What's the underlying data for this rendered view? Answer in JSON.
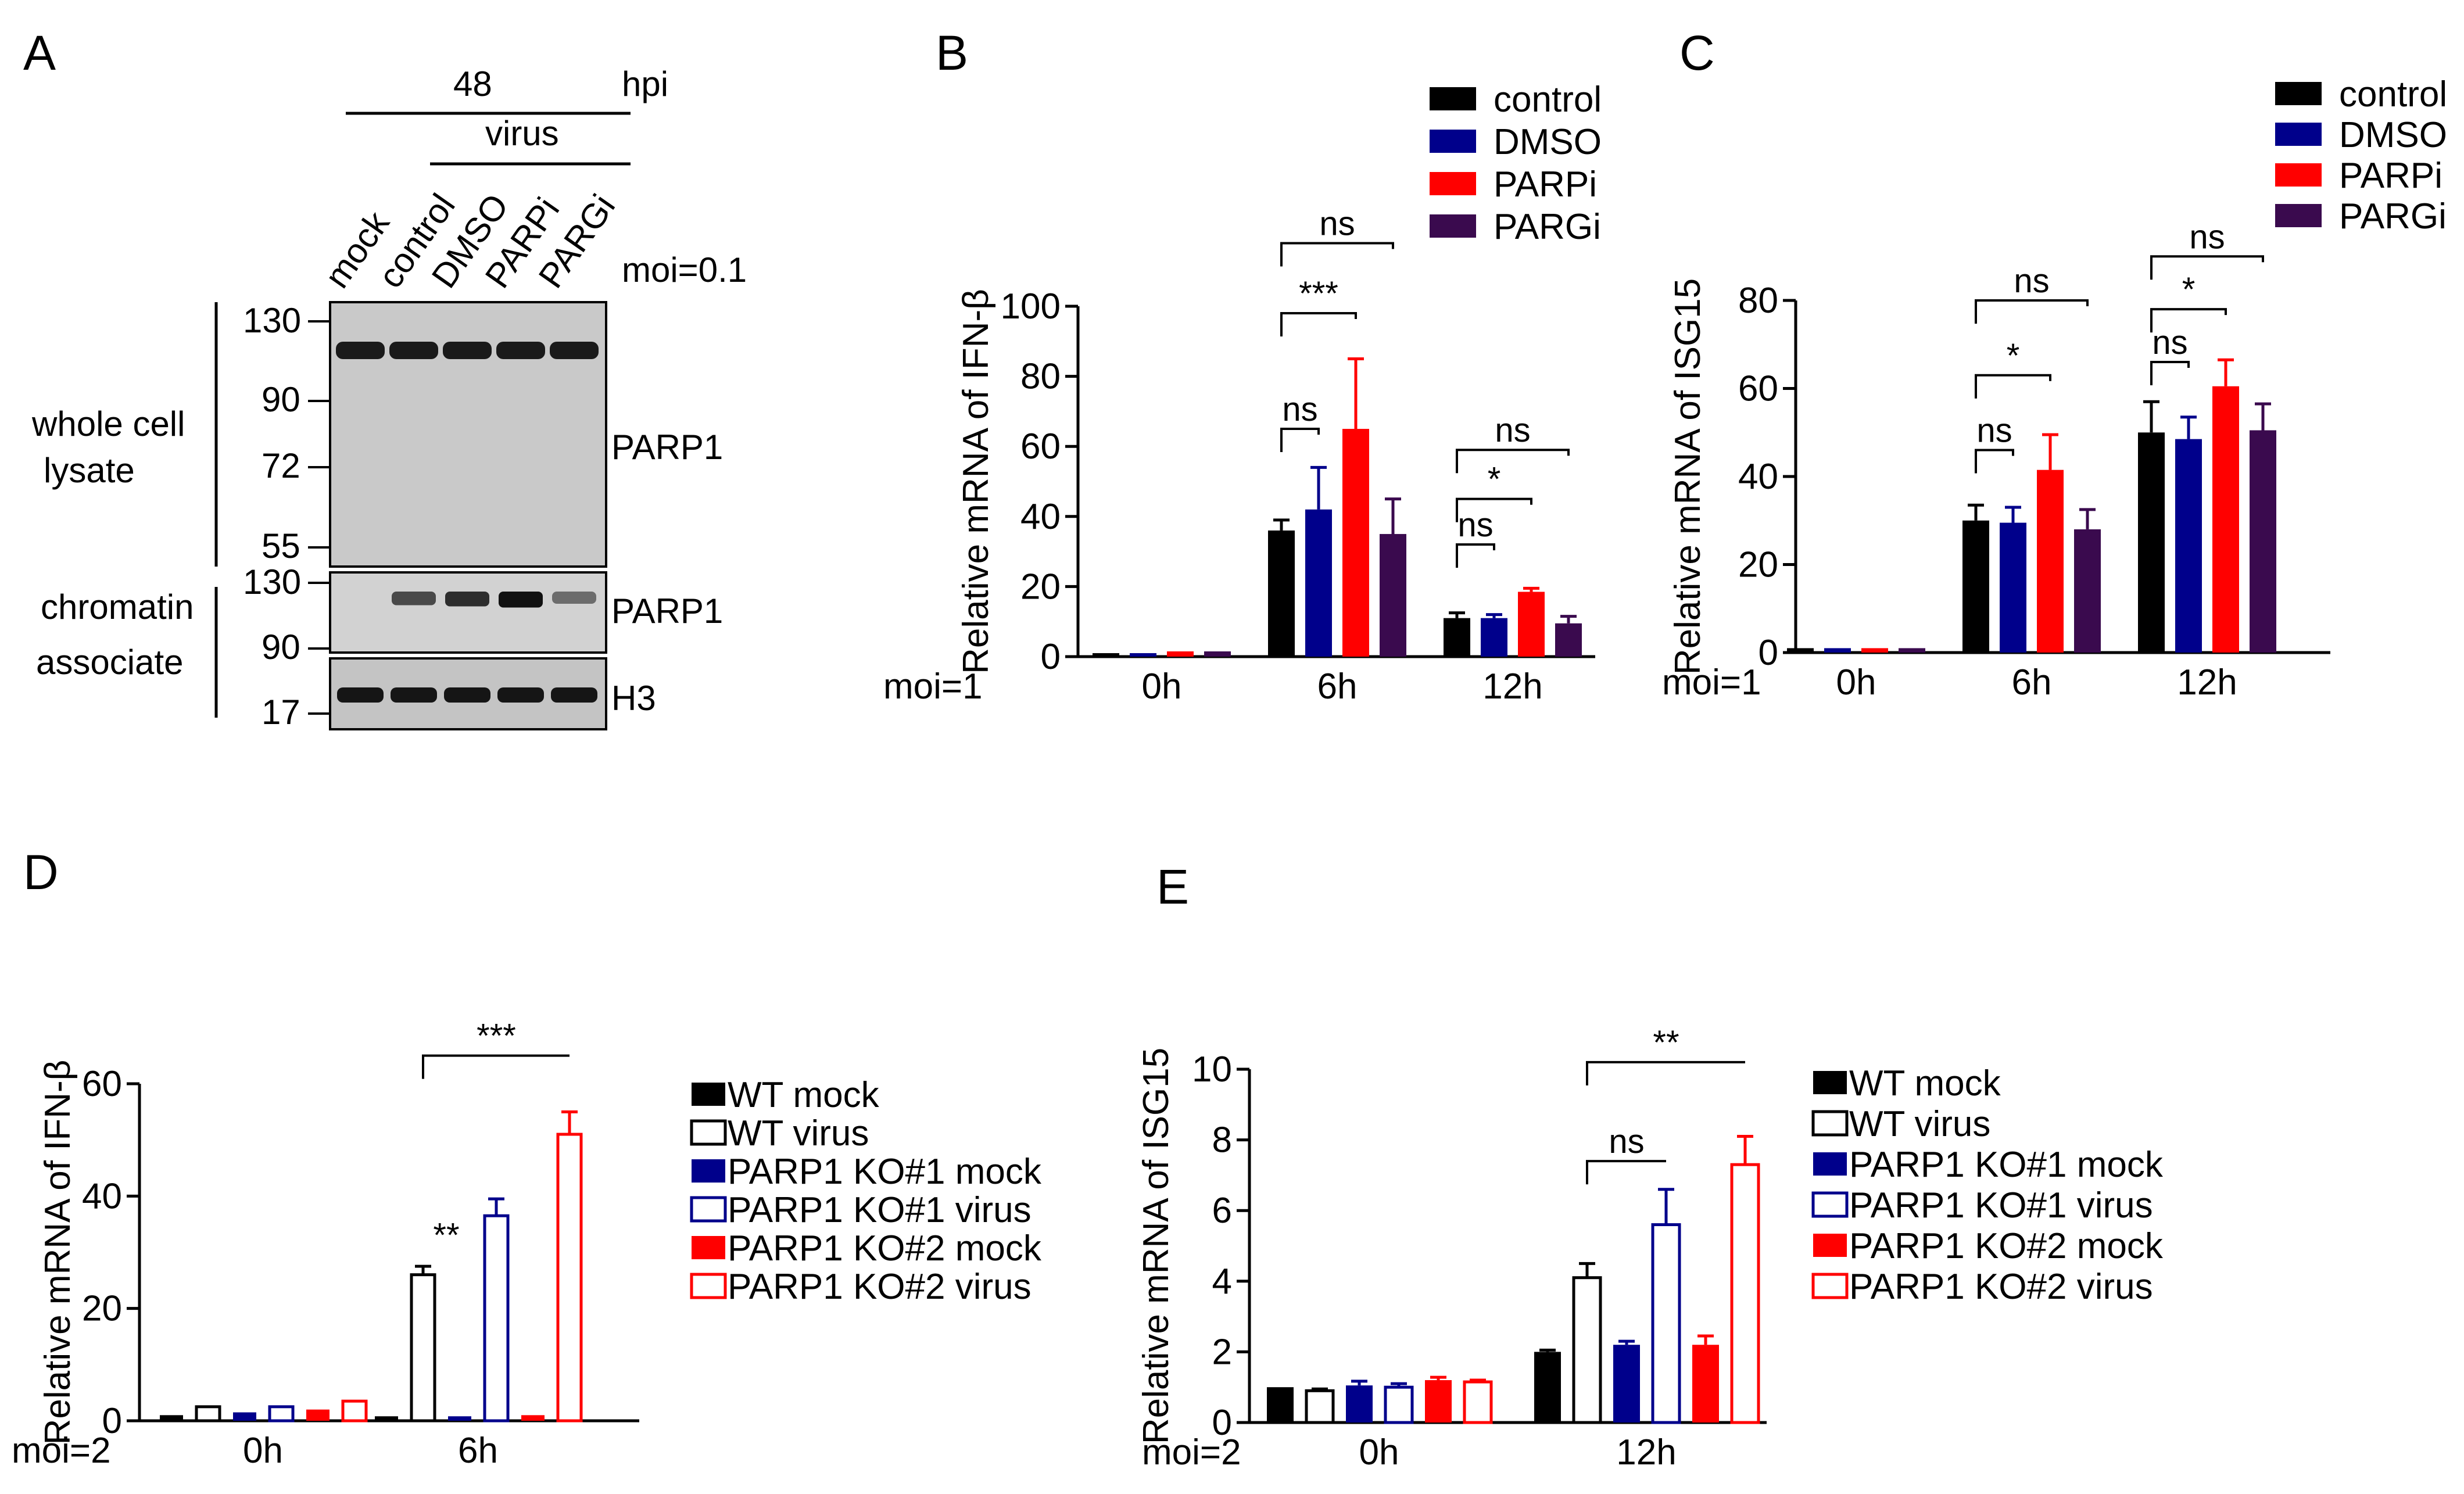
{
  "panel_labels": {
    "A": "A",
    "B": "B",
    "C": "C",
    "D": "D",
    "E": "E"
  },
  "western_blot": {
    "time_label": "48",
    "time_unit": "hpi",
    "virus_label": "virus",
    "moi_label": "moi=0.1",
    "lanes": [
      "mock",
      "control",
      "DMSO",
      "PARPi",
      "PARGi"
    ],
    "section_whole_line1": "whole cell",
    "section_whole_line2": "lysate",
    "section_chrom_line1": "chromatin",
    "section_chrom_line2": "associate",
    "mw_whole": [
      "130",
      "90",
      "72",
      "55"
    ],
    "mw_chrom": [
      "130",
      "90"
    ],
    "mw_h3": "17",
    "protein_whole": "PARP1",
    "protein_chrom": "PARP1",
    "protein_h3": "H3",
    "chrom_band_intensity": [
      0.0,
      0.55,
      0.75,
      0.95,
      0.3
    ]
  },
  "chart_data": [
    {
      "id": "B",
      "type": "bar",
      "title": "",
      "moi_label": "moi=1",
      "ylabel": "Relative mRNA of IFN-β",
      "categories": [
        "0h",
        "6h",
        "12h"
      ],
      "ylim": [
        0,
        100
      ],
      "yticks": [
        "0",
        "20",
        "40",
        "60",
        "80",
        "100"
      ],
      "series": [
        {
          "name": "control",
          "color": "#000000",
          "values": [
            1,
            36,
            11
          ],
          "errors": [
            0,
            3,
            1.5
          ]
        },
        {
          "name": "DMSO",
          "color": "#00008B",
          "values": [
            1,
            42,
            11
          ],
          "errors": [
            0,
            12,
            1
          ]
        },
        {
          "name": "PARPi",
          "color": "#FF0000",
          "values": [
            1.5,
            65,
            18.5
          ],
          "errors": [
            0,
            20,
            1
          ]
        },
        {
          "name": "PARGi",
          "color": "#3A0A4E",
          "values": [
            1.5,
            35,
            9.5
          ],
          "errors": [
            0,
            10,
            2
          ]
        }
      ],
      "significance": [
        {
          "text": "ns",
          "cat": 1,
          "from": 0,
          "to": 1,
          "y": 65
        },
        {
          "text": "***",
          "cat": 1,
          "from": 0,
          "to": 2,
          "y": 98
        },
        {
          "text": "ns",
          "cat": 1,
          "from": 0,
          "to": 3,
          "y": 118
        },
        {
          "text": "ns",
          "cat": 2,
          "from": 0,
          "to": 1,
          "y": 32
        },
        {
          "text": "*",
          "cat": 2,
          "from": 0,
          "to": 2,
          "y": 45
        },
        {
          "text": "ns",
          "cat": 2,
          "from": 0,
          "to": 3,
          "y": 59
        }
      ]
    },
    {
      "id": "C",
      "type": "bar",
      "title": "",
      "moi_label": "moi=1",
      "ylabel": "Relative mRNA of ISG15",
      "categories": [
        "0h",
        "6h",
        "12h"
      ],
      "ylim": [
        0,
        80
      ],
      "yticks": [
        "0",
        "20",
        "40",
        "60",
        "80"
      ],
      "series": [
        {
          "name": "control",
          "color": "#000000",
          "values": [
            1,
            30,
            50
          ],
          "errors": [
            0,
            3.5,
            7
          ]
        },
        {
          "name": "DMSO",
          "color": "#00008B",
          "values": [
            1,
            29.5,
            48.5
          ],
          "errors": [
            0,
            3.5,
            5
          ]
        },
        {
          "name": "PARPi",
          "color": "#FF0000",
          "values": [
            1,
            41.5,
            60.5
          ],
          "errors": [
            0,
            8,
            6
          ]
        },
        {
          "name": "PARGi",
          "color": "#3A0A4E",
          "values": [
            1,
            28,
            50.5
          ],
          "errors": [
            0,
            4.5,
            6
          ]
        }
      ],
      "significance": [
        {
          "text": "ns",
          "cat": 1,
          "from": 0,
          "to": 1,
          "y": 46
        },
        {
          "text": "*",
          "cat": 1,
          "from": 0,
          "to": 2,
          "y": 63
        },
        {
          "text": "ns",
          "cat": 1,
          "from": 0,
          "to": 3,
          "y": 80
        },
        {
          "text": "ns",
          "cat": 2,
          "from": 0,
          "to": 1,
          "y": 66
        },
        {
          "text": "*",
          "cat": 2,
          "from": 0,
          "to": 2,
          "y": 78
        },
        {
          "text": "ns",
          "cat": 2,
          "from": 0,
          "to": 3,
          "y": 90
        }
      ]
    },
    {
      "id": "D",
      "type": "bar",
      "title": "",
      "moi_label": "moi=2",
      "ylabel": "Relative mRNA of IFN-β",
      "categories": [
        "0h",
        "6h"
      ],
      "ylim": [
        0,
        60
      ],
      "yticks": [
        "0",
        "20",
        "40",
        "60"
      ],
      "series": [
        {
          "name": "WT mock",
          "color": "#000000",
          "filled": true,
          "values": [
            1,
            0.8
          ],
          "errors": [
            0,
            0
          ]
        },
        {
          "name": "WT virus",
          "color": "#000000",
          "filled": false,
          "values": [
            2.5,
            26
          ],
          "errors": [
            0,
            1.5
          ]
        },
        {
          "name": "PARP1 KO#1 mock",
          "color": "#00008B",
          "filled": true,
          "values": [
            1.5,
            0.8
          ],
          "errors": [
            0,
            0
          ]
        },
        {
          "name": "PARP1 KO#1 virus",
          "color": "#00008B",
          "filled": false,
          "values": [
            2.5,
            36.5
          ],
          "errors": [
            0,
            3
          ]
        },
        {
          "name": "PARP1 KO#2 mock",
          "color": "#FF0000",
          "filled": true,
          "values": [
            2,
            1
          ],
          "errors": [
            0,
            0
          ]
        },
        {
          "name": "PARP1 KO#2 virus",
          "color": "#FF0000",
          "filled": false,
          "values": [
            3.5,
            51
          ],
          "errors": [
            0,
            4
          ]
        }
      ],
      "significance": [
        {
          "text": "***",
          "cat": 1,
          "from": 1,
          "to": 5,
          "y": 65,
          "drop_right": false
        },
        {
          "text": "**",
          "cat": 1,
          "from": 1,
          "to": 1,
          "y": 31,
          "label_only": true
        }
      ]
    },
    {
      "id": "E",
      "type": "bar",
      "title": "",
      "moi_label": "moi=2",
      "ylabel": "Relative mRNA of ISG15",
      "categories": [
        "0h",
        "12h"
      ],
      "ylim": [
        0,
        10
      ],
      "yticks": [
        "0",
        "2",
        "4",
        "6",
        "8",
        "10"
      ],
      "series": [
        {
          "name": "WT mock",
          "color": "#000000",
          "filled": true,
          "values": [
            1,
            2
          ],
          "errors": [
            0,
            0.05
          ]
        },
        {
          "name": "WT virus",
          "color": "#000000",
          "filled": false,
          "values": [
            0.9,
            4.1
          ],
          "errors": [
            0.05,
            0.4
          ]
        },
        {
          "name": "PARP1 KO#1 mock",
          "color": "#00008B",
          "filled": true,
          "values": [
            1.05,
            2.2
          ],
          "errors": [
            0.12,
            0.1
          ]
        },
        {
          "name": "PARP1 KO#1 virus",
          "color": "#00008B",
          "filled": false,
          "values": [
            1,
            5.6
          ],
          "errors": [
            0.1,
            1
          ]
        },
        {
          "name": "PARP1 KO#2 mock",
          "color": "#FF0000",
          "filled": true,
          "values": [
            1.2,
            2.2
          ],
          "errors": [
            0.08,
            0.25
          ]
        },
        {
          "name": "PARP1 KO#2 virus",
          "color": "#FF0000",
          "filled": false,
          "values": [
            1.15,
            7.3
          ],
          "errors": [
            0.05,
            0.8
          ]
        }
      ],
      "significance": [
        {
          "text": "**",
          "cat": 1,
          "from": 1,
          "to": 5,
          "y": 10.2,
          "drop_right": false
        },
        {
          "text": "ns",
          "cat": 1,
          "from": 1,
          "to": 3,
          "y": 7.4,
          "drop_right": false
        }
      ]
    }
  ]
}
